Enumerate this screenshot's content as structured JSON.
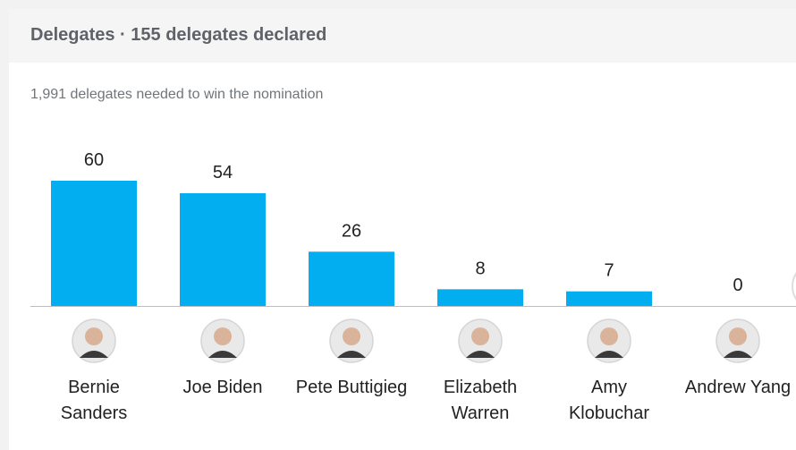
{
  "chart_data": {
    "type": "bar",
    "title": "Delegates · 155 delegates declared",
    "subtitle": "1,991 delegates needed to win the nomination",
    "categories": [
      "Bernie Sanders",
      "Joe Biden",
      "Pete Buttigieg",
      "Elizabeth Warren",
      "Amy Klobuchar",
      "Andrew Yang"
    ],
    "values": [
      60,
      54,
      26,
      8,
      7,
      0
    ],
    "color": "#03aef0"
  }
}
